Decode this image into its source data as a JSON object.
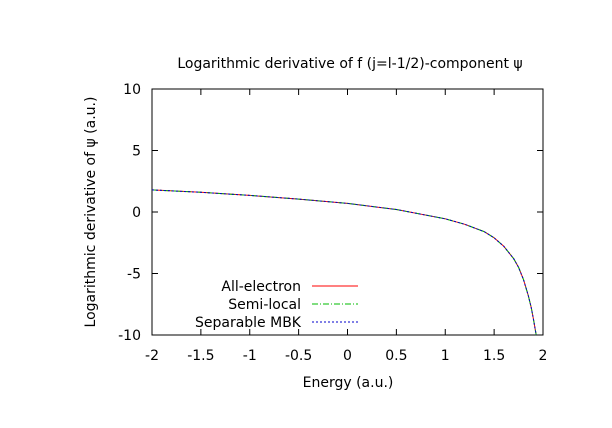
{
  "chart_data": {
    "type": "line",
    "title": "Logarithmic derivative of f (j=l-1/2)-component ψ",
    "xlabel": "Energy (a.u.)",
    "ylabel": "Logarithmic derivative of ψ (a.u.)",
    "xlim": [
      -2,
      2
    ],
    "ylim": [
      -10,
      10
    ],
    "xticks": [
      "-2",
      "-1.5",
      "-1",
      "-0.5",
      "0",
      "0.5",
      "1",
      "1.5",
      "2"
    ],
    "yticks": [
      "10",
      "5",
      "0",
      "-5",
      "-10"
    ],
    "grid": false,
    "legend_position": "bottom-left",
    "series": [
      {
        "name": "All-electron",
        "color": "#ff0000",
        "dash": "solid",
        "x": [
          -2.0,
          -1.5,
          -1.0,
          -0.5,
          0.0,
          0.5,
          1.0,
          1.2,
          1.4,
          1.5,
          1.6,
          1.7,
          1.75,
          1.8,
          1.85,
          1.88,
          1.9,
          1.93
        ],
        "y": [
          1.8,
          1.6,
          1.35,
          1.05,
          0.7,
          0.2,
          -0.55,
          -1.0,
          -1.6,
          -2.1,
          -2.8,
          -3.8,
          -4.5,
          -5.5,
          -6.8,
          -7.8,
          -8.6,
          -10.0
        ]
      },
      {
        "name": "Semi-local",
        "color": "#00bb00",
        "dash": "dashdot",
        "x": [
          -2.0,
          -1.5,
          -1.0,
          -0.5,
          0.0,
          0.5,
          1.0,
          1.2,
          1.4,
          1.5,
          1.6,
          1.7,
          1.75,
          1.8,
          1.85,
          1.88,
          1.9,
          1.93
        ],
        "y": [
          1.8,
          1.6,
          1.35,
          1.05,
          0.7,
          0.2,
          -0.55,
          -1.0,
          -1.6,
          -2.1,
          -2.8,
          -3.8,
          -4.5,
          -5.5,
          -6.8,
          -7.8,
          -8.6,
          -10.0
        ]
      },
      {
        "name": "Separable MBK",
        "color": "#0000cc",
        "dash": "dotted",
        "x": [
          -2.0,
          -1.5,
          -1.0,
          -0.5,
          0.0,
          0.5,
          1.0,
          1.2,
          1.4,
          1.5,
          1.6,
          1.7,
          1.75,
          1.8,
          1.85,
          1.88,
          1.9,
          1.93
        ],
        "y": [
          1.8,
          1.6,
          1.35,
          1.05,
          0.7,
          0.2,
          -0.55,
          -1.0,
          -1.6,
          -2.1,
          -2.8,
          -3.8,
          -4.5,
          -5.5,
          -6.8,
          -7.8,
          -8.6,
          -10.0
        ]
      }
    ]
  }
}
